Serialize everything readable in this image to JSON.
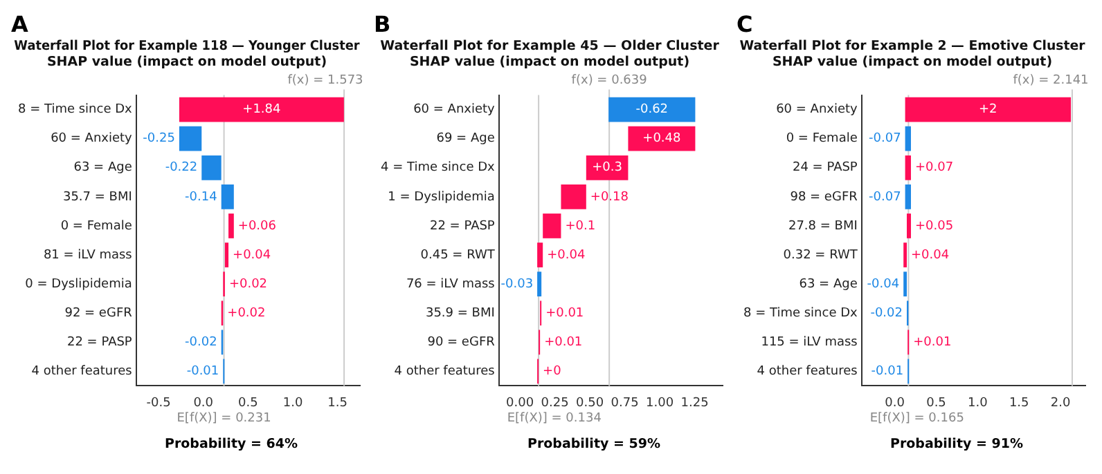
{
  "chart_data": [
    {
      "type": "bar",
      "orientation": "horizontal",
      "title": "Waterfall Plot for Example 118 — Younger Cluster",
      "subtitle": "SHAP value (impact on model output)",
      "categories": [
        "8 = Time since Dx",
        "60 = Anxiety",
        "63 = Age",
        "35.7 = BMI",
        "0 = Female",
        "81 = iLV mass",
        "0 = Dyslipidemia",
        "92 = eGFR",
        "22 = PASP",
        "4 other features"
      ],
      "values": [
        1.84,
        -0.25,
        -0.22,
        -0.14,
        0.06,
        0.04,
        0.02,
        0.02,
        -0.02,
        -0.01
      ],
      "base": [
        -0.269,
        -0.019,
        0.201,
        0.341,
        0.281,
        0.241,
        0.221,
        0.201,
        0.221,
        0.231
      ],
      "value_labels": [
        "+1.84",
        "-0.25",
        "-0.22",
        "-0.14",
        "+0.06",
        "+0.04",
        "+0.02",
        "+0.02",
        "-0.02",
        "-0.01"
      ],
      "colors": [
        "#ff0d57",
        "#1e88e5",
        "#1e88e5",
        "#1e88e5",
        "#ff0d57",
        "#ff0d57",
        "#ff0d57",
        "#ff0d57",
        "#1e88e5",
        "#1e88e5"
      ],
      "xlim": [
        -0.75,
        1.75
      ],
      "xticks": [
        -0.5,
        {
          "value": 0,
          "label": "0.0"
        },
        0.5,
        {
          "value": 1,
          "label": "1.0"
        },
        1.5
      ],
      "ref_lines": [
        {
          "axis": "x",
          "value": 0.231,
          "label": "E[f(X)] = 0.231"
        },
        {
          "axis": "x",
          "value": 1.573,
          "label": "f(x) = 1.573"
        }
      ],
      "annotations": [
        "A",
        "Probability = 64%"
      ],
      "grid": false,
      "legend": false
    },
    {
      "type": "bar",
      "orientation": "horizontal",
      "title": "Waterfall Plot for Example 45 — Older Cluster",
      "subtitle": "SHAP value (impact on model output)",
      "categories": [
        "60 = Anxiety",
        "69 = Age",
        "4 = Time since Dx",
        "1 = Dyslipidemia",
        "22 = PASP",
        "0.45 = RWT",
        "76 = iLV mass",
        "35.9 = BMI",
        "90 = eGFR",
        "4 other features"
      ],
      "values": [
        -0.62,
        0.48,
        0.3,
        0.18,
        0.13,
        0.04,
        -0.03,
        0.01,
        0.01,
        0
      ],
      "base": [
        1.254,
        0.774,
        0.474,
        0.294,
        0.164,
        0.124,
        0.154,
        0.144,
        0.134,
        0.134
      ],
      "value_labels": [
        "-0.62",
        "+0.48",
        "+0.3",
        "+0.18",
        "+0.1",
        "+0.04",
        "-0.03",
        "+0.01",
        "+0.01",
        "+0"
      ],
      "colors": [
        "#1e88e5",
        "#ff0d57",
        "#ff0d57",
        "#ff0d57",
        "#ff0d57",
        "#ff0d57",
        "#1e88e5",
        "#ff0d57",
        "#ff0d57",
        "#ff0d57"
      ],
      "xlim": [
        -0.15,
        1.45
      ],
      "xticks": [
        {
          "value": 0,
          "label": "0.00"
        },
        0.25,
        {
          "value": 0.5,
          "label": "0.50"
        },
        0.75,
        {
          "value": 1,
          "label": "1.00"
        },
        1.25
      ],
      "ref_lines": [
        {
          "axis": "x",
          "value": 0.134,
          "label": "E[f(X)] = 0.134"
        },
        {
          "axis": "x",
          "value": 0.639,
          "label": "f(x) = 0.639"
        }
      ],
      "annotations": [
        "B",
        "Probability = 59%"
      ],
      "grid": false,
      "legend": false
    },
    {
      "type": "bar",
      "orientation": "horizontal",
      "title": "Waterfall Plot for Example 2 — Emotive Cluster",
      "subtitle": "SHAP value (impact on model output)",
      "categories": [
        "60 = Anxiety",
        "0 = Female",
        "24 = PASP",
        "98 = eGFR",
        "27.8 = BMI",
        "0.32 = RWT",
        "63 = Age",
        "8 = Time since Dx",
        "115 = iLV mass",
        "4 other features"
      ],
      "values": [
        2,
        -0.07,
        0.07,
        -0.07,
        0.05,
        0.04,
        -0.04,
        -0.02,
        0.01,
        -0.01
      ],
      "base": [
        0.125,
        0.195,
        0.125,
        0.195,
        0.145,
        0.105,
        0.145,
        0.165,
        0.155,
        0.165
      ],
      "value_labels": [
        "+2",
        "-0.07",
        "+0.07",
        "-0.07",
        "+0.05",
        "+0.04",
        "-0.04",
        "-0.02",
        "+0.01",
        "-0.01"
      ],
      "colors": [
        "#ff0d57",
        "#1e88e5",
        "#ff0d57",
        "#1e88e5",
        "#ff0d57",
        "#ff0d57",
        "#1e88e5",
        "#1e88e5",
        "#ff0d57",
        "#1e88e5"
      ],
      "xlim": [
        -0.4,
        2.3
      ],
      "xticks": [
        {
          "value": 0,
          "label": "0.0"
        },
        0.5,
        {
          "value": 1,
          "label": "1.0"
        },
        1.5,
        {
          "value": 2,
          "label": "2.0"
        }
      ],
      "ref_lines": [
        {
          "axis": "x",
          "value": 0.165,
          "label": "E[f(X)] = 0.165"
        },
        {
          "axis": "x",
          "value": 2.141,
          "label": "f(x) = 2.141"
        }
      ],
      "annotations": [
        "C",
        "Probability = 91%"
      ],
      "grid": false,
      "legend": false
    }
  ]
}
